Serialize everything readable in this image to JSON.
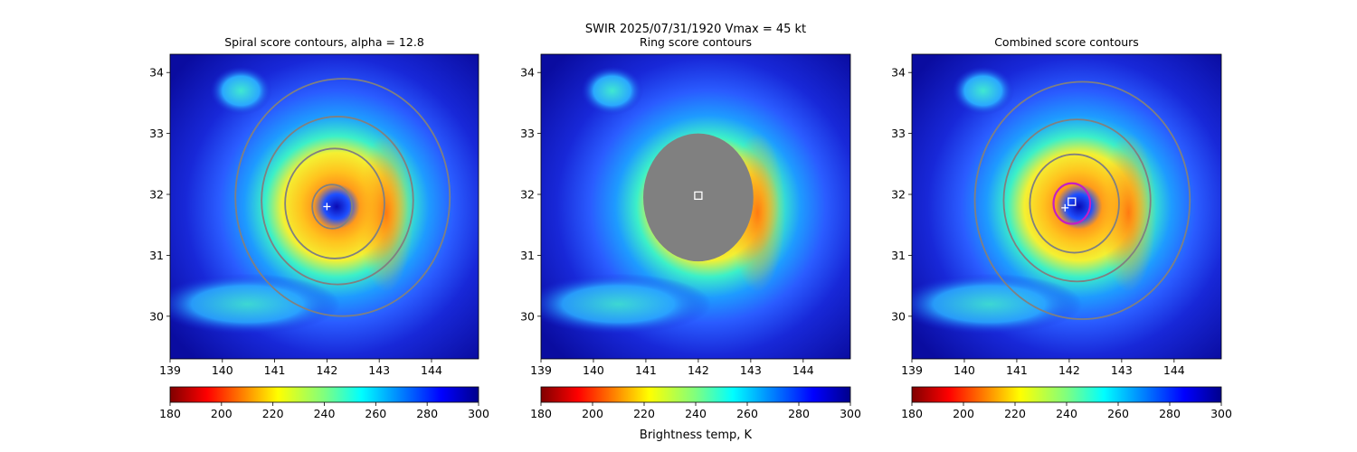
{
  "suptitle": "SWIR  2025/07/31/1920    Vmax = 45 kt",
  "colorbar_label": "Brightness temp, K",
  "chart_data": [
    {
      "type": "heatmap",
      "title": "Spiral score contours, alpha = 12.8",
      "xlim": [
        139,
        144.9
      ],
      "ylim": [
        29.3,
        34.3
      ],
      "xticks": [
        "139",
        "140",
        "141",
        "142",
        "143",
        "144"
      ],
      "yticks": [
        "30",
        "31",
        "32",
        "33",
        "34"
      ],
      "center": [
        142.0,
        31.8
      ],
      "contours": [
        {
          "cx": 142.1,
          "cy": 31.8,
          "r": 0.38,
          "color": "#808080"
        },
        {
          "cx": 142.15,
          "cy": 31.85,
          "r": 0.95,
          "color": "#808080"
        },
        {
          "cx": 142.2,
          "cy": 31.9,
          "r": 1.45,
          "color": "#808080"
        },
        {
          "cx": 142.3,
          "cy": 31.95,
          "r": 2.05,
          "color": "#808080"
        }
      ],
      "markers": [
        {
          "type": "plus",
          "x": 142.0,
          "y": 31.8
        }
      ],
      "colorbar": {
        "ticks": [
          "180",
          "200",
          "220",
          "240",
          "260",
          "280",
          "300"
        ],
        "range": [
          180,
          300
        ]
      }
    },
    {
      "type": "heatmap",
      "title": "Ring score contours",
      "xlim": [
        139,
        144.9
      ],
      "ylim": [
        29.3,
        34.3
      ],
      "xticks": [
        "139",
        "140",
        "141",
        "142",
        "143",
        "144"
      ],
      "yticks": [
        "30",
        "31",
        "32",
        "33",
        "34"
      ],
      "ring_region": {
        "cx": 142.0,
        "cy": 31.95,
        "r": 1.05,
        "color": "#808080"
      },
      "markers": [
        {
          "type": "square",
          "x": 142.0,
          "y": 31.98
        }
      ],
      "colorbar": {
        "ticks": [
          "180",
          "200",
          "220",
          "240",
          "260",
          "280",
          "300"
        ],
        "range": [
          180,
          300
        ]
      }
    },
    {
      "type": "heatmap",
      "title": "Combined score contours",
      "xlim": [
        139,
        144.9
      ],
      "ylim": [
        29.3,
        34.3
      ],
      "xticks": [
        "139",
        "140",
        "141",
        "142",
        "143",
        "144"
      ],
      "yticks": [
        "30",
        "31",
        "32",
        "33",
        "34"
      ],
      "contours": [
        {
          "cx": 142.05,
          "cy": 31.85,
          "r": 0.35,
          "color": "#c41ec4"
        },
        {
          "cx": 142.1,
          "cy": 31.85,
          "r": 0.85,
          "color": "#808080"
        },
        {
          "cx": 142.15,
          "cy": 31.9,
          "r": 1.4,
          "color": "#808080"
        },
        {
          "cx": 142.25,
          "cy": 31.9,
          "r": 2.05,
          "color": "#808080"
        }
      ],
      "markers": [
        {
          "type": "plus",
          "x": 141.92,
          "y": 31.78
        },
        {
          "type": "square",
          "x": 142.05,
          "y": 31.88
        }
      ],
      "colorbar": {
        "ticks": [
          "180",
          "200",
          "220",
          "240",
          "260",
          "280",
          "300"
        ],
        "range": [
          180,
          300
        ]
      }
    }
  ]
}
